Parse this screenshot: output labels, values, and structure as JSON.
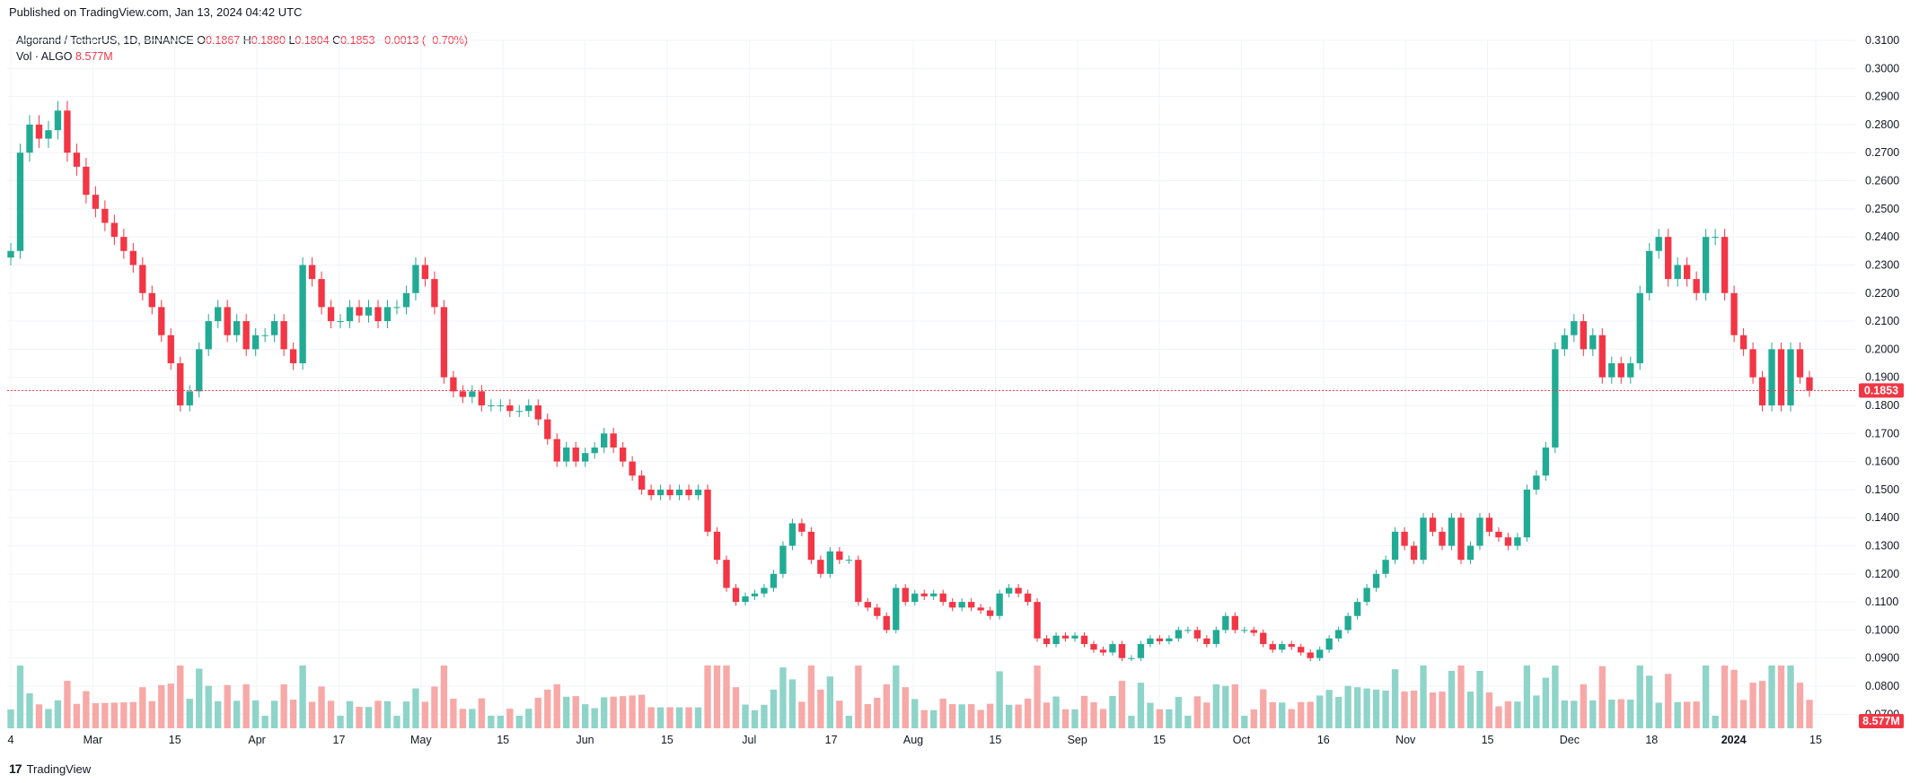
{
  "header": {
    "published": "Published on TradingView.com, Jan 13, 2024 04:42 UTC"
  },
  "legend": {
    "symbol": "Algorand / TetherUS, 1D, BINANCE",
    "o_label": "O",
    "o_value": "0.1867",
    "h_label": "H",
    "h_value": "0.1880",
    "l_label": "L",
    "l_value": "0.1804",
    "c_label": "C",
    "c_value": "0.1853",
    "change": "−0.0013 (−0.70%)",
    "vol_label": "Vol · ALGO",
    "vol_value": "8.577M"
  },
  "footer": {
    "brand": "TradingView",
    "logo_glyph": "17"
  },
  "colors": {
    "up": "#22ab94",
    "down": "#f23645",
    "up_vol": "#8fd4c9",
    "down_vol": "#f7a9a7",
    "grid": "#f0f3fa"
  },
  "chart_data": {
    "type": "candlestick",
    "price_ylim": [
      0.065,
      0.31
    ],
    "y_ticks": [
      "0.3100",
      "0.3000",
      "0.2900",
      "0.2800",
      "0.2700",
      "0.2600",
      "0.2500",
      "0.2400",
      "0.2300",
      "0.2200",
      "0.2100",
      "0.2000",
      "0.1900",
      "0.1800",
      "0.1700",
      "0.1600",
      "0.1500",
      "0.1400",
      "0.1300",
      "0.1200",
      "0.1100",
      "0.1000",
      "0.0900",
      "0.0800",
      "0.0700"
    ],
    "x_ticks": [
      "4",
      "Mar",
      "15",
      "Apr",
      "17",
      "May",
      "15",
      "Jun",
      "15",
      "Jul",
      "17",
      "Aug",
      "15",
      "Sep",
      "15",
      "Oct",
      "16",
      "Nov",
      "15",
      "Dec",
      "18",
      "2024",
      "15"
    ],
    "last_price_label": "0.1853",
    "last_price": 0.1853,
    "last_volume_label": "8.577M",
    "closes_approx": [
      0.235,
      0.27,
      0.28,
      0.275,
      0.278,
      0.285,
      0.27,
      0.265,
      0.255,
      0.25,
      0.245,
      0.24,
      0.235,
      0.23,
      0.22,
      0.215,
      0.205,
      0.195,
      0.18,
      0.185,
      0.2,
      0.21,
      0.215,
      0.205,
      0.21,
      0.2,
      0.205,
      0.205,
      0.21,
      0.2,
      0.195,
      0.23,
      0.225,
      0.215,
      0.21,
      0.21,
      0.215,
      0.212,
      0.215,
      0.21,
      0.215,
      0.215,
      0.22,
      0.23,
      0.225,
      0.215,
      0.19,
      0.185,
      0.183,
      0.185,
      0.18,
      0.18,
      0.18,
      0.178,
      0.178,
      0.18,
      0.175,
      0.168,
      0.16,
      0.165,
      0.16,
      0.163,
      0.165,
      0.17,
      0.165,
      0.16,
      0.155,
      0.15,
      0.148,
      0.15,
      0.148,
      0.15,
      0.148,
      0.15,
      0.135,
      0.125,
      0.115,
      0.11,
      0.112,
      0.113,
      0.115,
      0.12,
      0.13,
      0.138,
      0.135,
      0.125,
      0.12,
      0.128,
      0.125,
      0.125,
      0.11,
      0.108,
      0.105,
      0.1,
      0.115,
      0.11,
      0.113,
      0.112,
      0.113,
      0.11,
      0.108,
      0.11,
      0.108,
      0.107,
      0.105,
      0.113,
      0.115,
      0.113,
      0.11,
      0.097,
      0.095,
      0.098,
      0.097,
      0.098,
      0.095,
      0.093,
      0.092,
      0.095,
      0.09,
      0.09,
      0.095,
      0.097,
      0.096,
      0.097,
      0.1,
      0.1,
      0.097,
      0.095,
      0.1,
      0.105,
      0.1,
      0.1,
      0.099,
      0.095,
      0.093,
      0.095,
      0.094,
      0.092,
      0.09,
      0.093,
      0.097,
      0.1,
      0.105,
      0.11,
      0.115,
      0.12,
      0.125,
      0.135,
      0.13,
      0.125,
      0.14,
      0.135,
      0.13,
      0.14,
      0.125,
      0.13,
      0.14,
      0.135,
      0.133,
      0.13,
      0.133,
      0.15,
      0.155,
      0.165,
      0.2,
      0.205,
      0.21,
      0.2,
      0.205,
      0.19,
      0.195,
      0.19,
      0.195,
      0.22,
      0.235,
      0.24,
      0.225,
      0.23,
      0.225,
      0.22,
      0.24,
      0.24,
      0.22,
      0.205,
      0.2,
      0.19,
      0.18,
      0.2,
      0.18,
      0.2,
      0.19,
      0.1853
    ]
  }
}
